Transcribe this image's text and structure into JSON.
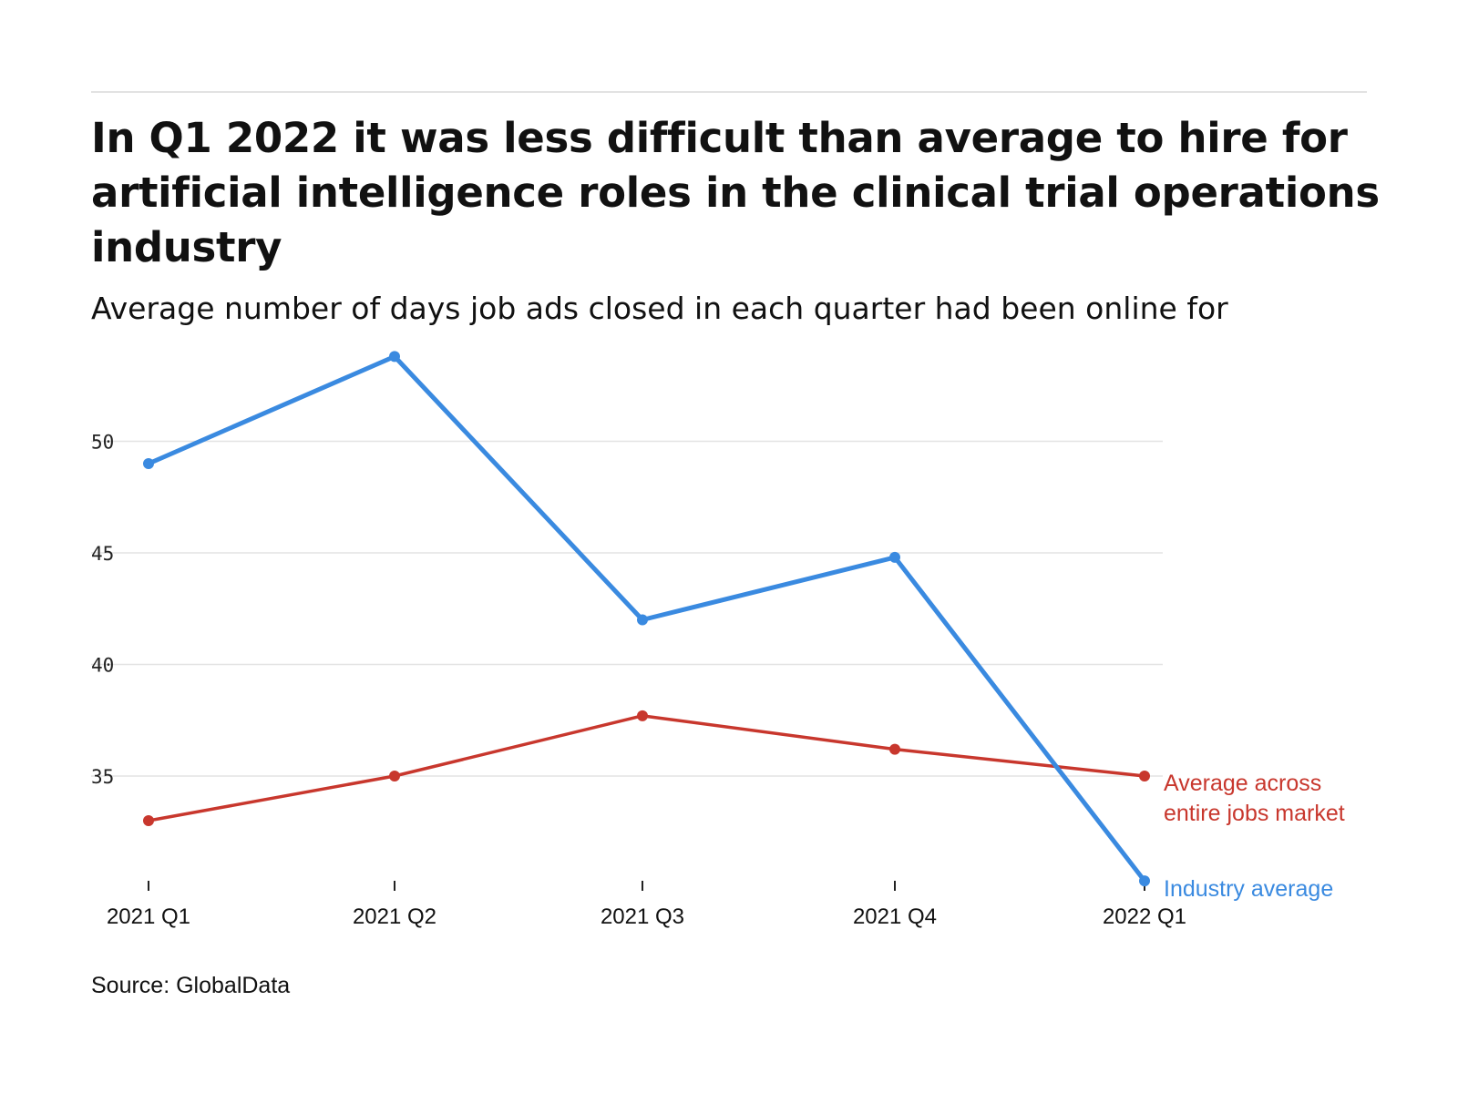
{
  "title": "In Q1 2022 it was less difficult than average to hire for artificial intelligence roles in the clinical trial operations industry",
  "subtitle": "Average number of days job ads closed in each quarter had been online for",
  "source": "Source: GlobalData",
  "chart_data": {
    "type": "line",
    "title": "In Q1 2022 it was less difficult than average to hire for artificial intelligence roles in the clinical trial operations industry",
    "subtitle": "Average number of days job ads closed in each quarter had been online for",
    "xlabel": "",
    "ylabel": "",
    "categories": [
      "2021 Q1",
      "2021 Q2",
      "2021 Q3",
      "2021 Q4",
      "2022 Q1"
    ],
    "yticks": [
      35,
      40,
      45,
      50
    ],
    "ylim": [
      30.2,
      54
    ],
    "grid": true,
    "legend": "direct labels at right end of lines",
    "series": [
      {
        "name": "Industry average",
        "color": "#3a8ae0",
        "values": [
          49,
          53.8,
          42,
          44.8,
          30.3
        ]
      },
      {
        "name": "Average across entire jobs market",
        "label_lines": [
          "Average across",
          "entire jobs market"
        ],
        "color": "#c8372d",
        "values": [
          33,
          35,
          37.7,
          36.2,
          35
        ]
      }
    ]
  }
}
